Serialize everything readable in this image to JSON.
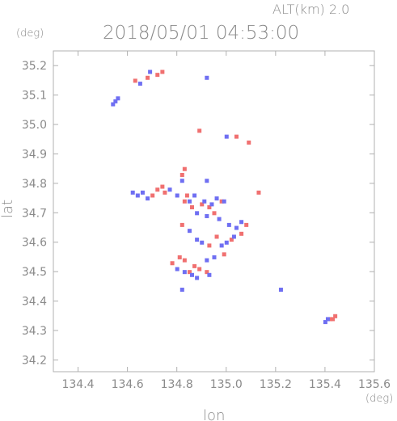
{
  "header": {
    "alt_label": "ALT(km) 2.0",
    "datetime": "2018/05/01 04:53:00",
    "y_unit": "(deg)",
    "x_unit": "(deg)"
  },
  "chart_data": {
    "type": "scatter",
    "title": "2018/05/01 04:53:00",
    "xlabel": "lon",
    "ylabel": "lat",
    "xlim": [
      134.3,
      135.6
    ],
    "ylim": [
      34.16,
      35.25
    ],
    "grid": false,
    "x_ticks": [
      "134.4",
      "134.6",
      "134.8",
      "135.0",
      "135.2",
      "135.4",
      "135.6"
    ],
    "y_ticks": [
      "34.2",
      "34.3",
      "34.4",
      "34.5",
      "34.6",
      "34.7",
      "34.8",
      "34.9",
      "35.0",
      "35.1",
      "35.2"
    ],
    "colors": {
      "positive": "#f07070",
      "negative": "#6f6ff2",
      "axis": "#b0b0b0",
      "text": "#8a8a8a"
    },
    "series": [
      {
        "name": "",
        "color": "#f07070",
        "points": [
          [
            134.63,
            35.15
          ],
          [
            134.68,
            35.16
          ],
          [
            134.72,
            35.17
          ],
          [
            134.74,
            35.18
          ],
          [
            134.89,
            34.98
          ],
          [
            135.04,
            34.96
          ],
          [
            135.09,
            34.94
          ],
          [
            134.83,
            34.85
          ],
          [
            134.82,
            34.83
          ],
          [
            134.7,
            34.76
          ],
          [
            134.72,
            34.78
          ],
          [
            134.74,
            34.79
          ],
          [
            134.75,
            34.77
          ],
          [
            134.83,
            34.74
          ],
          [
            134.84,
            34.76
          ],
          [
            134.86,
            34.72
          ],
          [
            134.9,
            34.73
          ],
          [
            134.93,
            34.72
          ],
          [
            134.95,
            34.7
          ],
          [
            134.98,
            34.74
          ],
          [
            135.13,
            34.77
          ],
          [
            134.82,
            34.66
          ],
          [
            134.96,
            34.62
          ],
          [
            135.06,
            34.63
          ],
          [
            135.08,
            34.66
          ],
          [
            134.93,
            34.59
          ],
          [
            135.02,
            34.61
          ],
          [
            134.99,
            34.56
          ],
          [
            134.83,
            34.54
          ],
          [
            134.85,
            34.5
          ],
          [
            134.87,
            34.52
          ],
          [
            134.89,
            34.51
          ],
          [
            134.92,
            34.5
          ],
          [
            134.78,
            34.53
          ],
          [
            134.81,
            34.55
          ],
          [
            135.43,
            34.34
          ],
          [
            135.44,
            34.35
          ],
          [
            135.42,
            34.34
          ]
        ]
      },
      {
        "name": "",
        "color": "#6f6ff2",
        "points": [
          [
            134.56,
            35.09
          ],
          [
            134.55,
            35.08
          ],
          [
            134.54,
            35.07
          ],
          [
            134.65,
            35.14
          ],
          [
            134.69,
            35.18
          ],
          [
            134.92,
            35.16
          ],
          [
            135.0,
            34.96
          ],
          [
            134.82,
            34.81
          ],
          [
            134.62,
            34.77
          ],
          [
            134.64,
            34.76
          ],
          [
            134.66,
            34.77
          ],
          [
            134.68,
            34.75
          ],
          [
            134.77,
            34.78
          ],
          [
            134.8,
            34.76
          ],
          [
            134.85,
            34.74
          ],
          [
            134.87,
            34.76
          ],
          [
            134.91,
            34.74
          ],
          [
            134.94,
            34.73
          ],
          [
            134.96,
            34.75
          ],
          [
            134.99,
            34.74
          ],
          [
            134.88,
            34.7
          ],
          [
            134.92,
            34.69
          ],
          [
            134.97,
            34.68
          ],
          [
            135.01,
            34.66
          ],
          [
            135.04,
            34.65
          ],
          [
            135.06,
            34.67
          ],
          [
            135.03,
            34.62
          ],
          [
            135.0,
            34.6
          ],
          [
            134.98,
            34.59
          ],
          [
            134.9,
            34.6
          ],
          [
            134.88,
            34.61
          ],
          [
            134.85,
            34.64
          ],
          [
            134.93,
            34.49
          ],
          [
            134.88,
            34.48
          ],
          [
            134.83,
            34.5
          ],
          [
            134.8,
            34.51
          ],
          [
            134.92,
            34.54
          ],
          [
            134.82,
            34.44
          ],
          [
            134.86,
            34.49
          ],
          [
            134.95,
            34.55
          ],
          [
            135.22,
            34.44
          ],
          [
            135.41,
            34.34
          ],
          [
            135.4,
            34.33
          ],
          [
            134.92,
            34.81
          ]
        ]
      }
    ]
  }
}
